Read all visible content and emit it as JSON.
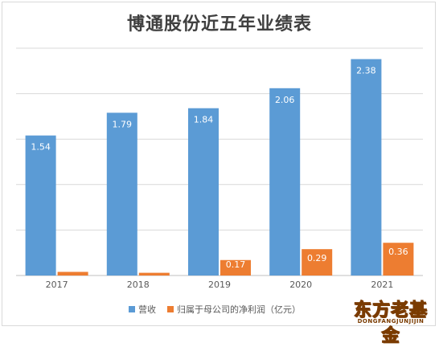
{
  "chart_data": {
    "type": "bar",
    "title": "博通股份近五年业绩表",
    "categories": [
      "2017",
      "2018",
      "2019",
      "2020",
      "2021"
    ],
    "series": [
      {
        "name": "营收",
        "values": [
          1.54,
          1.79,
          1.84,
          2.06,
          2.38
        ],
        "color": "#5b9bd5"
      },
      {
        "name": "归属于母公司的净利润（亿元）",
        "values": [
          0.04,
          0.03,
          0.17,
          0.29,
          0.36
        ],
        "color": "#ed7d31"
      }
    ],
    "ylim": [
      0,
      2.5
    ],
    "grid": true,
    "legend_position": "bottom"
  },
  "watermark": {
    "main": "东方老基金",
    "sub": "DONGFANGJUNJIJIN"
  }
}
